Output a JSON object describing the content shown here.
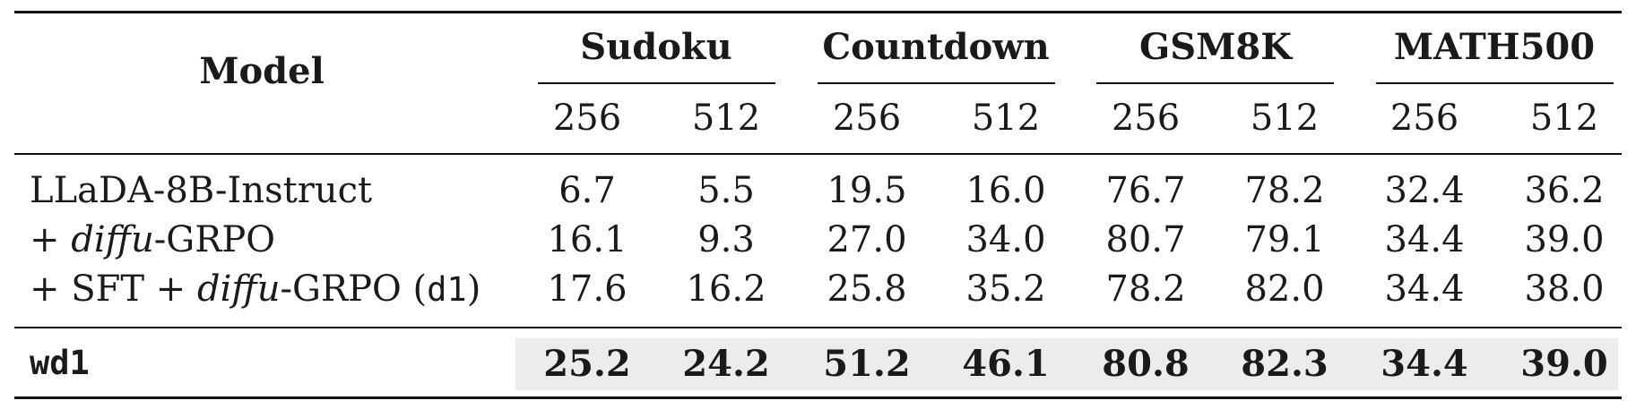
{
  "header": {
    "model_label": "Model",
    "groups": [
      "Sudoku",
      "Countdown",
      "GSM8K",
      "MATH500"
    ],
    "lengths": [
      "256",
      "512",
      "256",
      "512",
      "256",
      "512",
      "256",
      "512"
    ]
  },
  "rows": [
    {
      "model_parts": [
        "LLaDA-8B-Instruct"
      ],
      "values": [
        "6.7",
        "5.5",
        "19.5",
        "16.0",
        "76.7",
        "78.2",
        "32.4",
        "36.2"
      ]
    },
    {
      "model_parts": [
        "+ ",
        "diffu",
        "-GRPO"
      ],
      "values": [
        "16.1",
        "9.3",
        "27.0",
        "34.0",
        "80.7",
        "79.1",
        "34.4",
        "39.0"
      ]
    },
    {
      "model_parts": [
        "+ SFT + ",
        "diffu",
        "-GRPO (",
        "d1",
        ")"
      ],
      "values": [
        "17.6",
        "16.2",
        "25.8",
        "35.2",
        "78.2",
        "82.0",
        "34.4",
        "38.0"
      ]
    }
  ],
  "highlight_row": {
    "model": "wd1",
    "values": [
      "25.2",
      "24.2",
      "51.2",
      "46.1",
      "80.8",
      "82.3",
      "34.4",
      "39.0"
    ]
  },
  "colors": {
    "highlight_bg": "#ececec",
    "text": "#1a1a1a",
    "rule": "#111111"
  }
}
